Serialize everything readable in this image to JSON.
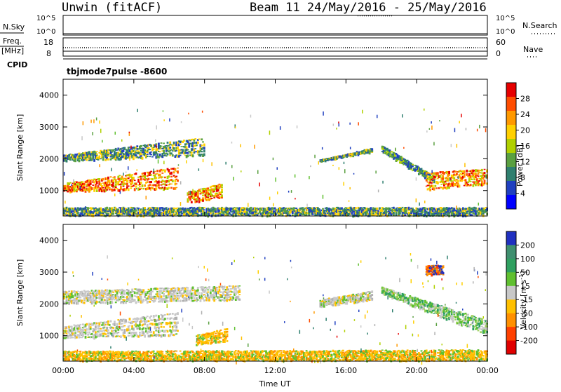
{
  "header": {
    "station": "Unwin (fitACF)",
    "beam_info": "Beam 11  24/May/2016 - 25/May/2016"
  },
  "panels": {
    "nsky_label": "N.Sky",
    "nsearch_label": "N.Search",
    "noise_ticks": [
      "10^5",
      "10^0"
    ],
    "freq_label": "Freq.",
    "freq_unit": "[MHz]",
    "freq_ticks": [
      "18",
      "8"
    ],
    "nave_label": "Nave",
    "nave_ticks": [
      "60",
      "0"
    ],
    "cpid_label": "CPID",
    "cpid_value": "tbjmode7pulse -8600"
  },
  "colorbars": {
    "power": {
      "label": "Power [dB]",
      "ticks": [
        "28",
        "24",
        "20",
        "16",
        "12",
        "8",
        "4"
      ],
      "colors": [
        "#e60000",
        "#ff4d00",
        "#ff9900",
        "#ffd000",
        "#b0d000",
        "#5aa040",
        "#2f7f6f",
        "#2040c0",
        "#0000ff"
      ]
    },
    "velocity": {
      "label": "Velocity [m s",
      "label_sup": "-1",
      "label_close": "]",
      "ticks": [
        "200",
        "100",
        "50",
        "15",
        "-15",
        "-50",
        "-100",
        "-200"
      ],
      "colors": [
        "#2030c0",
        "#3f8f6f",
        "#2fa060",
        "#60c030",
        "#c8c8c8",
        "#ffc000",
        "#ff9000",
        "#ff4000",
        "#e00000"
      ]
    }
  },
  "chart_data": [
    {
      "type": "heatmap",
      "title": "Power",
      "xlabel": "Time UT",
      "ylabel": "Slant Range [km]",
      "x_ticks": [
        "00:00",
        "04:00",
        "08:00",
        "12:00",
        "16:00",
        "20:00",
        "00:00"
      ],
      "y_ticks": [
        1000,
        2000,
        3000,
        4000
      ],
      "ylim": [
        200,
        4500
      ],
      "xlim_hours": [
        0,
        24
      ],
      "colorbar_ticks": [
        28,
        24,
        20,
        16,
        12,
        8,
        4
      ],
      "bands": [
        {
          "t": [
            0,
            6.5
          ],
          "r0": [
            950,
            1050
          ],
          "r1": [
            1200,
            1800
          ],
          "level": "high"
        },
        {
          "t": [
            7,
            9
          ],
          "r0": [
            600,
            750
          ],
          "r1": [
            950,
            1250
          ],
          "level": "high"
        },
        {
          "t": [
            0,
            8
          ],
          "r0": [
            1900,
            2100
          ],
          "r1": [
            2100,
            2700
          ],
          "level": "low"
        },
        {
          "t": [
            14.5,
            17.5
          ],
          "r0": [
            1900,
            2200
          ],
          "r1": [
            1900,
            2300
          ],
          "level": "low"
        },
        {
          "t": [
            18,
            21
          ],
          "r0": [
            2200,
            1200
          ],
          "r1": [
            2400,
            1400
          ],
          "level": "mid"
        },
        {
          "t": [
            20.5,
            24
          ],
          "r0": [
            1000,
            1200
          ],
          "r1": [
            1600,
            1700
          ],
          "level": "high"
        },
        {
          "t": [
            0,
            24
          ],
          "r0": [
            200,
            200
          ],
          "r1": [
            450,
            450
          ],
          "level": "low"
        }
      ]
    },
    {
      "type": "heatmap",
      "title": "Velocity",
      "xlabel": "Time UT",
      "ylabel": "Slant Range [km]",
      "x_ticks": [
        "00:00",
        "04:00",
        "08:00",
        "12:00",
        "16:00",
        "20:00",
        "00:00"
      ],
      "y_ticks": [
        1000,
        2000,
        3000,
        4000
      ],
      "ylim": [
        200,
        4500
      ],
      "xlim_hours": [
        0,
        24
      ],
      "colorbar_ticks": [
        200,
        100,
        50,
        15,
        -15,
        -50,
        -100,
        -200
      ],
      "bands": [
        {
          "t": [
            0,
            6.5
          ],
          "r0": [
            900,
            1000
          ],
          "r1": [
            1300,
            1800
          ],
          "level": "grey"
        },
        {
          "t": [
            7.5,
            9.3
          ],
          "r0": [
            700,
            800
          ],
          "r1": [
            1000,
            1250
          ],
          "level": "orange"
        },
        {
          "t": [
            0,
            10
          ],
          "r0": [
            2000,
            2100
          ],
          "r1": [
            2400,
            2600
          ],
          "level": "grey"
        },
        {
          "t": [
            14.5,
            17.5
          ],
          "r0": [
            1900,
            2100
          ],
          "r1": [
            2100,
            2400
          ],
          "level": "grey"
        },
        {
          "t": [
            18,
            24
          ],
          "r0": [
            2300,
            1000
          ],
          "r1": [
            2500,
            1500
          ],
          "level": "green"
        },
        {
          "t": [
            0,
            24
          ],
          "r0": [
            200,
            200
          ],
          "r1": [
            500,
            550
          ],
          "level": "orange"
        },
        {
          "t": [
            20.5,
            21.5
          ],
          "r0": [
            2900,
            2900
          ],
          "r1": [
            3200,
            3200
          ],
          "level": "blue"
        }
      ]
    }
  ]
}
